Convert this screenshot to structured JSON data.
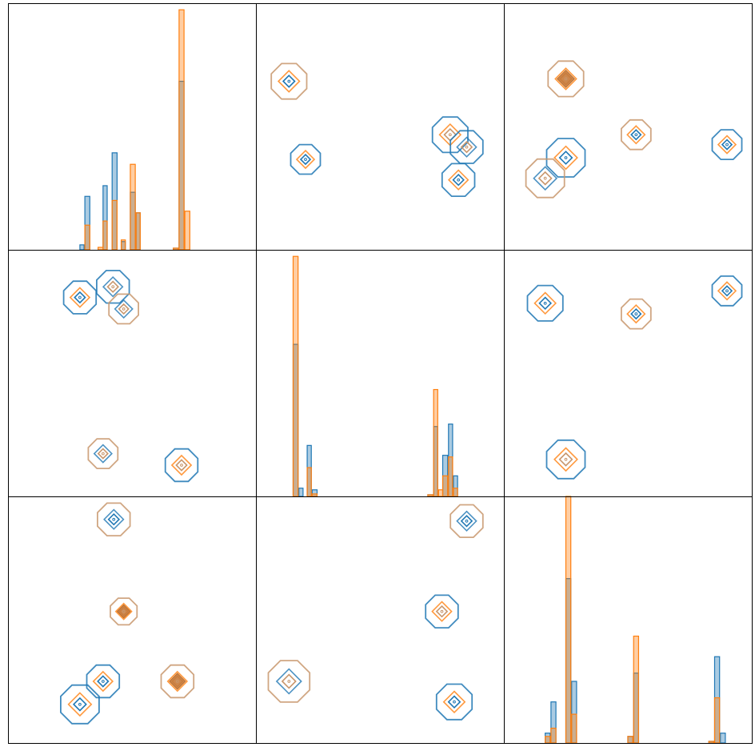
{
  "figure": {
    "grid_rows": 3,
    "grid_cols": 3,
    "colors": {
      "series_a": "#1f77b4",
      "series_b": "#ff7f0e",
      "overlap": "#c8966c"
    }
  },
  "chart_data": [
    {
      "type": "histogram",
      "row": 0,
      "col": 0,
      "xlim": [
        0,
        300
      ],
      "ylim": [
        0,
        300
      ],
      "series": [
        {
          "bins": [
            [
              87,
              92,
              6
            ],
            [
              93,
              99,
              65
            ],
            [
              115,
              120,
              78
            ],
            [
              126,
              132,
              118
            ],
            [
              137,
              142,
              10
            ],
            [
              148,
              154,
              70
            ],
            [
              155,
              160,
              45
            ],
            [
              200,
              206,
              2
            ],
            [
              207,
              213,
              205
            ],
            [
              214,
              220,
              0
            ]
          ]
        },
        {
          "bins": [
            [
              93,
              99,
              30
            ],
            [
              109,
              115,
              3
            ],
            [
              115,
              120,
              35
            ],
            [
              126,
              132,
              60
            ],
            [
              137,
              142,
              12
            ],
            [
              148,
              154,
              104
            ],
            [
              155,
              160,
              45
            ],
            [
              200,
              206,
              2
            ],
            [
              207,
              213,
              292
            ],
            [
              214,
              220,
              47
            ]
          ]
        }
      ]
    },
    {
      "type": "kde",
      "row": 0,
      "col": 1,
      "xlim": [
        0,
        300
      ],
      "ylim": [
        0,
        300
      ],
      "clusters": [
        {
          "center": [
            40,
            205
          ],
          "series": [
            "b",
            "b",
            "a"
          ],
          "radius": 24
        },
        {
          "center": [
            60,
            110
          ],
          "series": [
            "a",
            "b"
          ],
          "radius": 20
        },
        {
          "center": [
            235,
            140
          ],
          "series": [
            "a",
            "b",
            "b"
          ],
          "radius": 24
        },
        {
          "center": [
            255,
            125
          ],
          "series": [
            "a",
            "a",
            "b"
          ],
          "radius": 22
        },
        {
          "center": [
            245,
            85
          ],
          "series": [
            "a",
            "b",
            "a"
          ],
          "radius": 22
        }
      ]
    },
    {
      "type": "kde",
      "row": 0,
      "col": 2,
      "xlim": [
        0,
        300
      ],
      "ylim": [
        0,
        300
      ],
      "clusters": [
        {
          "center": [
            75,
            208
          ],
          "series": [
            "b",
            "b",
            "b"
          ],
          "radius": 24
        },
        {
          "center": [
            160,
            140
          ],
          "series": [
            "b",
            "b",
            "a"
          ],
          "radius": 20
        },
        {
          "center": [
            270,
            128
          ],
          "series": [
            "a",
            "b",
            "a"
          ],
          "radius": 20
        },
        {
          "center": [
            75,
            112
          ],
          "series": [
            "a",
            "b",
            "a"
          ],
          "radius": 26
        },
        {
          "center": [
            50,
            87
          ],
          "series": [
            "b",
            "a",
            "b"
          ],
          "radius": 26
        }
      ]
    },
    {
      "type": "kde",
      "row": 1,
      "col": 0,
      "xlim": [
        0,
        300
      ],
      "ylim": [
        0,
        300
      ],
      "clusters": [
        {
          "center": [
            87,
            242
          ],
          "series": [
            "a",
            "b",
            "a"
          ],
          "radius": 22
        },
        {
          "center": [
            127,
            255
          ],
          "series": [
            "a",
            "a",
            "b"
          ],
          "radius": 22
        },
        {
          "center": [
            140,
            228
          ],
          "series": [
            "b",
            "a",
            "b"
          ],
          "radius": 20
        },
        {
          "center": [
            115,
            52
          ],
          "series": [
            "b",
            "a",
            "b"
          ],
          "radius": 20
        },
        {
          "center": [
            210,
            38
          ],
          "series": [
            "a",
            "b",
            "b"
          ],
          "radius": 22
        }
      ]
    },
    {
      "type": "histogram",
      "row": 1,
      "col": 1,
      "xlim": [
        0,
        300
      ],
      "ylim": [
        0,
        300
      ],
      "series": [
        {
          "bins": [
            [
              45,
              51,
              185
            ],
            [
              52,
              57,
              10
            ],
            [
              62,
              67,
              62
            ],
            [
              68,
              74,
              8
            ],
            [
              208,
              214,
              2
            ],
            [
              215,
              220,
              85
            ],
            [
              221,
              226,
              0
            ],
            [
              226,
              232,
              50
            ],
            [
              233,
              238,
              88
            ],
            [
              239,
              244,
              25
            ]
          ]
        },
        {
          "bins": [
            [
              45,
              51,
              292
            ],
            [
              52,
              57,
              0
            ],
            [
              62,
              67,
              35
            ],
            [
              68,
              74,
              3
            ],
            [
              208,
              214,
              2
            ],
            [
              215,
              220,
              130
            ],
            [
              221,
              226,
              8
            ],
            [
              226,
              232,
              25
            ],
            [
              233,
              238,
              48
            ],
            [
              239,
              244,
              10
            ]
          ]
        }
      ]
    },
    {
      "type": "kde",
      "row": 1,
      "col": 2,
      "xlim": [
        0,
        300
      ],
      "ylim": [
        0,
        300
      ],
      "clusters": [
        {
          "center": [
            50,
            235
          ],
          "series": [
            "a",
            "b"
          ],
          "radius": 24
        },
        {
          "center": [
            160,
            222
          ],
          "series": [
            "b",
            "b",
            "a"
          ],
          "radius": 20
        },
        {
          "center": [
            270,
            250
          ],
          "series": [
            "a",
            "b",
            "a"
          ],
          "radius": 20
        },
        {
          "center": [
            75,
            45
          ],
          "series": [
            "a",
            "b",
            "b"
          ],
          "radius": 26
        }
      ]
    },
    {
      "type": "kde",
      "row": 2,
      "col": 0,
      "xlim": [
        0,
        300
      ],
      "ylim": [
        0,
        300
      ],
      "clusters": [
        {
          "center": [
            128,
            272
          ],
          "series": [
            "b",
            "a",
            "a"
          ],
          "radius": 22
        },
        {
          "center": [
            140,
            160
          ],
          "series": [
            "b",
            "b",
            "b"
          ],
          "radius": 18
        },
        {
          "center": [
            115,
            75
          ],
          "series": [
            "a",
            "b",
            "a"
          ],
          "radius": 22
        },
        {
          "center": [
            87,
            47
          ],
          "series": [
            "a",
            "b",
            "a"
          ],
          "radius": 26
        },
        {
          "center": [
            205,
            75
          ],
          "series": [
            "b",
            "b",
            "b"
          ],
          "radius": 22
        }
      ]
    },
    {
      "type": "kde",
      "row": 2,
      "col": 1,
      "xlim": [
        0,
        300
      ],
      "ylim": [
        0,
        300
      ],
      "clusters": [
        {
          "center": [
            255,
            270
          ],
          "series": [
            "b",
            "a",
            "a"
          ],
          "radius": 22
        },
        {
          "center": [
            225,
            160
          ],
          "series": [
            "a",
            "b",
            "b"
          ],
          "radius": 22
        },
        {
          "center": [
            40,
            75
          ],
          "series": [
            "b",
            "a",
            "b"
          ],
          "radius": 28
        },
        {
          "center": [
            240,
            50
          ],
          "series": [
            "a",
            "b",
            "a"
          ],
          "radius": 24
        }
      ]
    },
    {
      "type": "histogram",
      "row": 2,
      "col": 2,
      "xlim": [
        0,
        300
      ],
      "ylim": [
        0,
        300
      ],
      "series": [
        {
          "bins": [
            [
              50,
              56,
              12
            ],
            [
              57,
              63,
              50
            ],
            [
              75,
              81,
              200
            ],
            [
              82,
              88,
              75
            ],
            [
              150,
              156,
              8
            ],
            [
              157,
              163,
              85
            ],
            [
              248,
              254,
              2
            ],
            [
              255,
              261,
              105
            ],
            [
              262,
              268,
              12
            ]
          ]
        },
        {
          "bins": [
            [
              50,
              56,
              8
            ],
            [
              57,
              63,
              18
            ],
            [
              75,
              81,
              300
            ],
            [
              82,
              88,
              35
            ],
            [
              150,
              156,
              8
            ],
            [
              157,
              163,
              130
            ],
            [
              248,
              254,
              2
            ],
            [
              255,
              261,
              55
            ],
            [
              262,
              268,
              0
            ]
          ]
        }
      ]
    }
  ]
}
